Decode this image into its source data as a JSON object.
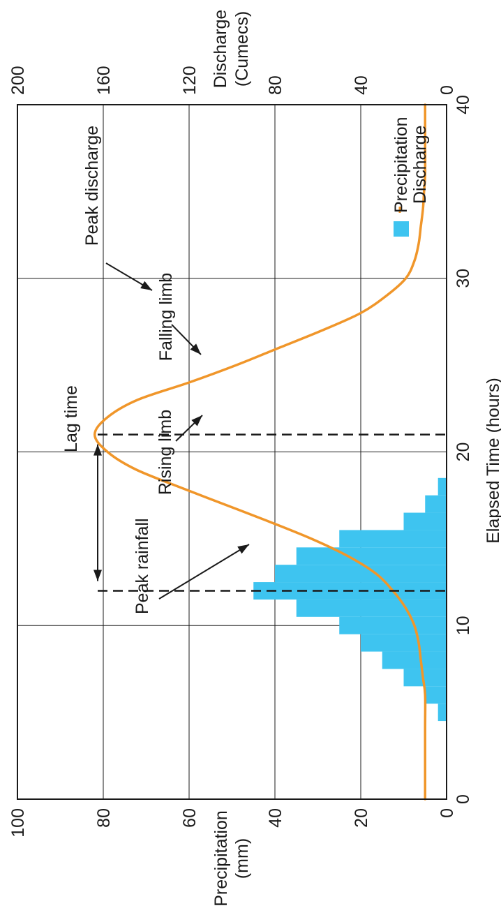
{
  "chart_data": {
    "type": "bar+line",
    "title": "",
    "xlabel": "Elapsed Time (hours)",
    "xlim": [
      0,
      40
    ],
    "x_ticks": [
      "0",
      "10",
      "20",
      "30",
      "40"
    ],
    "y_left": {
      "label_line1": "Precipitation",
      "label_line2": "(mm)",
      "lim": [
        0,
        100
      ],
      "ticks": [
        "0",
        "20",
        "40",
        "60",
        "80",
        "100"
      ]
    },
    "y_right": {
      "label_line1": "Discharge",
      "label_line2": "(Cumecs)",
      "lim": [
        0,
        200
      ],
      "ticks": [
        "0",
        "40",
        "80",
        "120",
        "160",
        "200"
      ]
    },
    "grid": true,
    "legend_placement": "top-right",
    "legend": [
      "Precipitation",
      "Discharge"
    ],
    "colors": {
      "precipitation": "#3ec4f0",
      "discharge": "#f0962a",
      "axis": "#1a1a1a"
    },
    "series": [
      {
        "name": "Precipitation",
        "type": "bar",
        "axis": "left",
        "bin_width_hours": 1,
        "bin_start": [
          4.5,
          5.5,
          6.5,
          7.5,
          8.5,
          9.5,
          10.5,
          11.5,
          12.5,
          13.5,
          14.5,
          15.5,
          16.5,
          17.5
        ],
        "values": [
          2,
          5,
          10,
          15,
          20,
          25,
          35,
          45,
          40,
          35,
          25,
          10,
          5,
          2
        ]
      },
      {
        "name": "Discharge",
        "type": "line",
        "axis": "right",
        "x": [
          0,
          4,
          6,
          7,
          8,
          9,
          10,
          11,
          12,
          13,
          14,
          15,
          16,
          17,
          18,
          19,
          20,
          21,
          22,
          23,
          24,
          25,
          26,
          27,
          28,
          29,
          30,
          31,
          32,
          33,
          34,
          35,
          36,
          38,
          40
        ],
        "values": [
          10,
          10,
          10,
          11,
          12,
          13,
          15,
          19,
          25,
          33,
          46,
          63,
          83,
          104,
          125,
          145,
          158,
          164,
          158,
          144,
          120,
          98,
          78,
          58,
          40,
          28,
          19,
          15,
          13,
          12,
          11,
          10.5,
          10,
          10,
          10
        ]
      }
    ],
    "annotations": {
      "peak_rainfall": "Peak rainfall",
      "peak_discharge": "Peak discharge",
      "lag_time": "Lag time",
      "rising_limb": "Rising limb",
      "falling_limb": "Falling limb"
    },
    "markers": {
      "peak_rainfall_hour": 12,
      "peak_discharge_hour": 21
    }
  }
}
